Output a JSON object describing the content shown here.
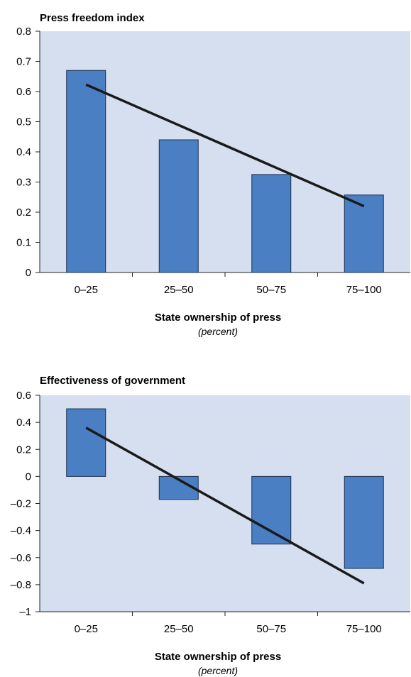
{
  "chart_data": [
    {
      "type": "bar",
      "title": "Press freedom index",
      "xlabel": "State ownership of press",
      "xlabel_sub": "(percent)",
      "ylabel": "",
      "categories": [
        "0–25",
        "25–50",
        "50–75",
        "75–100"
      ],
      "values": [
        0.67,
        0.44,
        0.325,
        0.257
      ],
      "trendline": {
        "start": 0.623,
        "end": 0.22
      },
      "ylim": [
        0,
        0.8
      ],
      "yticks": [
        0,
        0.1,
        0.2,
        0.3,
        0.4,
        0.5,
        0.6,
        0.7,
        0.8
      ],
      "ytick_labels": [
        "0",
        "0.1",
        "0.2",
        "0.3",
        "0.4",
        "0.5",
        "0.6",
        "0.7",
        "0.8"
      ],
      "grid": false,
      "colors": {
        "bar": "#4a7fc4",
        "bar_edge": "#1f2f4a",
        "plot_bg": "#d6dff0",
        "trend": "#1a1a1a"
      }
    },
    {
      "type": "bar",
      "title": "Effectiveness of government",
      "xlabel": "State ownership of press",
      "xlabel_sub": "(percent)",
      "ylabel": "",
      "categories": [
        "0–25",
        "25–50",
        "50–75",
        "75–100"
      ],
      "values": [
        0.5,
        -0.17,
        -0.5,
        -0.68
      ],
      "trendline": {
        "start": 0.36,
        "end": -0.79
      },
      "ylim": [
        -1,
        0.6
      ],
      "yticks": [
        -1,
        -0.8,
        -0.6,
        -0.4,
        -0.2,
        0,
        0.2,
        0.4,
        0.6
      ],
      "ytick_labels": [
        "–1",
        "–0.8",
        "–0.6",
        "–0.4",
        "–0.2",
        "0",
        "0.2",
        "0.4",
        "0.6"
      ],
      "grid": false,
      "colors": {
        "bar": "#4a7fc4",
        "bar_edge": "#1f2f4a",
        "plot_bg": "#d6dff0",
        "trend": "#1a1a1a"
      }
    }
  ]
}
